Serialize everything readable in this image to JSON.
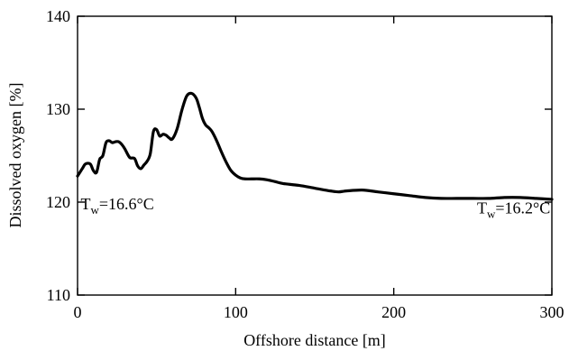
{
  "chart_data": {
    "type": "line",
    "title": "",
    "xlabel": "Offshore distance [m]",
    "ylabel": "Dissolved oxygen [%]",
    "xlim": [
      0,
      300
    ],
    "ylim": [
      110,
      140
    ],
    "x_ticks": [
      0,
      100,
      200,
      300
    ],
    "y_ticks": [
      110,
      120,
      130,
      140
    ],
    "grid": false,
    "series": [
      {
        "color": "#000000",
        "x": [
          0,
          3,
          5,
          8,
          10,
          12,
          14,
          16,
          18,
          20,
          22,
          24,
          26,
          28,
          30,
          33,
          36,
          38,
          40,
          42,
          44,
          46,
          48,
          50,
          52,
          54,
          56,
          58,
          60,
          63,
          66,
          69,
          72,
          75,
          77,
          79,
          81,
          83,
          85,
          88,
          91,
          94,
          97,
          100,
          103,
          106,
          110,
          115,
          120,
          125,
          130,
          140,
          150,
          160,
          165,
          170,
          180,
          190,
          200,
          210,
          220,
          230,
          240,
          250,
          260,
          270,
          280,
          290,
          300
        ],
        "y": [
          122.8,
          123.6,
          124.1,
          124.1,
          123.4,
          123.2,
          124.6,
          125.0,
          126.4,
          126.6,
          126.4,
          126.5,
          126.5,
          126.2,
          125.7,
          124.8,
          124.7,
          123.9,
          123.6,
          124.0,
          124.4,
          125.2,
          127.6,
          127.8,
          127.1,
          127.3,
          127.2,
          126.9,
          126.8,
          127.9,
          129.9,
          131.4,
          131.7,
          131.2,
          130.2,
          129.0,
          128.3,
          128.0,
          127.6,
          126.6,
          125.4,
          124.3,
          123.4,
          122.9,
          122.6,
          122.5,
          122.5,
          122.5,
          122.4,
          122.2,
          122.0,
          121.8,
          121.5,
          121.2,
          121.1,
          121.2,
          121.3,
          121.1,
          120.9,
          120.7,
          120.5,
          120.4,
          120.4,
          120.4,
          120.4,
          120.5,
          120.5,
          120.4,
          120.3
        ]
      }
    ],
    "annotations": [
      {
        "prefix": "T",
        "sub": "w",
        "suffix": "=16.6°C",
        "x": 2,
        "y": 119.2,
        "anchor": "start"
      },
      {
        "prefix": "T",
        "sub": "w",
        "suffix": "=16.2°C",
        "x": 299,
        "y": 118.8,
        "anchor": "end"
      }
    ]
  }
}
